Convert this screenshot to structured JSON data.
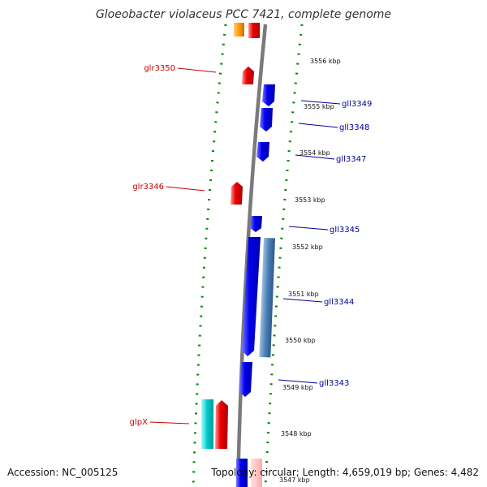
{
  "title": "Gloeobacter violaceus PCC 7421, complete genome",
  "footer": {
    "accession": "Accession: NC_005125",
    "summary": "Topology: circular; Length: 4,659,019 bp; Genes: 4,482"
  },
  "colors": {
    "forward_gene": "#ee0000",
    "reverse_gene": "#0000ee",
    "backbone": "#808080",
    "tick": "#008800"
  },
  "kbp_labels": [
    "3556 kbp",
    "3555 kbp",
    "3554 kbp",
    "3553 kbp",
    "3552 kbp",
    "3551 kbp",
    "3550 kbp",
    "3549 kbp",
    "3548 kbp",
    "3547 kbp"
  ],
  "genes_forward": [
    {
      "label": "glr3350"
    },
    {
      "label": "glr3346"
    },
    {
      "label": "glpX"
    }
  ],
  "genes_reverse": [
    {
      "label": "gll3349"
    },
    {
      "label": "gll3348"
    },
    {
      "label": "gll3347"
    },
    {
      "label": "gll3345"
    },
    {
      "label": "gll3344"
    },
    {
      "label": "gll3343"
    }
  ]
}
